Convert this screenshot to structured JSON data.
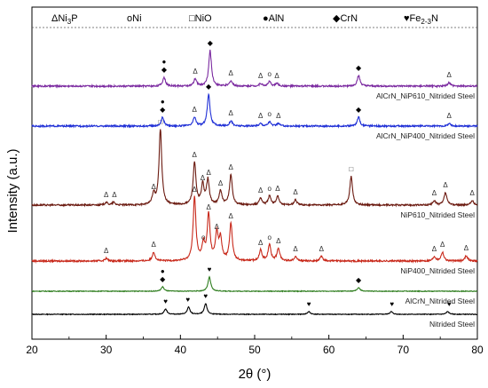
{
  "chart_data": {
    "type": "line",
    "title": "",
    "xlabel": "2θ (°)",
    "ylabel": "Intensity (a.u.)",
    "xlim": [
      20,
      80
    ],
    "xticks": [
      20,
      30,
      40,
      50,
      60,
      70,
      80
    ],
    "yticks": [],
    "grid": false,
    "legend_placement": "top",
    "legend": [
      {
        "symbol": "Δ",
        "label": "Ni3P"
      },
      {
        "symbol": "o",
        "label": "Ni"
      },
      {
        "symbol": "□",
        "label": "NiO"
      },
      {
        "symbol": "●",
        "label": "AlN"
      },
      {
        "symbol": "◆",
        "label": "CrN"
      },
      {
        "symbol": "♥",
        "label": "Fe2-3N"
      }
    ],
    "series": [
      {
        "name": "Nitrided Steel",
        "color": "#000000",
        "baseline": 0,
        "peaks": [
          [
            38.0,
            6
          ],
          [
            41.1,
            8
          ],
          [
            43.4,
            12
          ],
          [
            57.3,
            3
          ],
          [
            68.4,
            3
          ],
          [
            76.0,
            3
          ]
        ],
        "markers": [
          {
            "x": 38.0,
            "symbol": "♥"
          },
          {
            "x": 41.0,
            "symbol": "♥"
          },
          {
            "x": 43.4,
            "symbol": "♥"
          },
          {
            "x": 57.3,
            "symbol": "♥"
          },
          {
            "x": 68.5,
            "symbol": "♥"
          },
          {
            "x": 76.2,
            "symbol": "♥"
          }
        ]
      },
      {
        "name": "AlCrN_Nitrided Steel",
        "color": "#2e7d1e",
        "baseline": 26,
        "peaks": [
          [
            37.6,
            5
          ],
          [
            43.9,
            16
          ],
          [
            64.0,
            4
          ]
        ],
        "markers": [
          {
            "x": 37.6,
            "symbol": "◆"
          },
          {
            "x": 37.6,
            "symbol": "●"
          },
          {
            "x": 43.9,
            "symbol": "♥"
          },
          {
            "x": 64.0,
            "symbol": "◆"
          }
        ]
      },
      {
        "name": "NiP400_Nitrided Steel",
        "color": "#c8281a",
        "baseline": 60,
        "peaks": [
          [
            30.0,
            3
          ],
          [
            36.4,
            10
          ],
          [
            41.9,
            72
          ],
          [
            43.1,
            18
          ],
          [
            43.8,
            52
          ],
          [
            44.9,
            30
          ],
          [
            45.4,
            24
          ],
          [
            46.8,
            42
          ],
          [
            50.8,
            12
          ],
          [
            52.0,
            18
          ],
          [
            53.2,
            14
          ],
          [
            55.5,
            5
          ],
          [
            59.0,
            5
          ],
          [
            74.2,
            5
          ],
          [
            75.3,
            10
          ],
          [
            78.5,
            6
          ]
        ],
        "markers": [
          {
            "x": 30.0,
            "symbol": "Δ"
          },
          {
            "x": 36.4,
            "symbol": "Δ"
          },
          {
            "x": 41.9,
            "symbol": "Δ"
          },
          {
            "x": 43.1,
            "symbol": "o"
          },
          {
            "x": 43.8,
            "symbol": "Δ"
          },
          {
            "x": 44.9,
            "symbol": "Δ"
          },
          {
            "x": 46.8,
            "symbol": "Δ"
          },
          {
            "x": 50.8,
            "symbol": "Δ"
          },
          {
            "x": 52.0,
            "symbol": "o"
          },
          {
            "x": 53.2,
            "symbol": "Δ"
          },
          {
            "x": 55.5,
            "symbol": "Δ"
          },
          {
            "x": 59.0,
            "symbol": "Δ"
          },
          {
            "x": 74.2,
            "symbol": "Δ"
          },
          {
            "x": 75.3,
            "symbol": "Δ"
          },
          {
            "x": 78.5,
            "symbol": "Δ"
          }
        ]
      },
      {
        "name": "NiP610_Nitrided Steel",
        "color": "#6b1a10",
        "baseline": 123,
        "peaks": [
          [
            30.0,
            3
          ],
          [
            31.0,
            3
          ],
          [
            36.4,
            12
          ],
          [
            37.3,
            85
          ],
          [
            41.9,
            48
          ],
          [
            43.0,
            22
          ],
          [
            43.7,
            28
          ],
          [
            45.4,
            16
          ],
          [
            46.8,
            34
          ],
          [
            50.8,
            8
          ],
          [
            52.0,
            10
          ],
          [
            53.1,
            10
          ],
          [
            55.5,
            6
          ],
          [
            63.0,
            32
          ],
          [
            74.2,
            5
          ],
          [
            75.7,
            14
          ],
          [
            79.3,
            5
          ]
        ],
        "markers": [
          {
            "x": 30.0,
            "symbol": "Δ"
          },
          {
            "x": 31.1,
            "symbol": "Δ"
          },
          {
            "x": 36.4,
            "symbol": "Δ"
          },
          {
            "x": 37.3,
            "symbol": "□"
          },
          {
            "x": 41.9,
            "symbol": "Δ"
          },
          {
            "x": 43.0,
            "symbol": "Δ"
          },
          {
            "x": 43.8,
            "symbol": "Δ"
          },
          {
            "x": 45.4,
            "symbol": "Δ"
          },
          {
            "x": 46.8,
            "symbol": "Δ"
          },
          {
            "x": 50.8,
            "symbol": "Δ"
          },
          {
            "x": 52.0,
            "symbol": "o"
          },
          {
            "x": 53.1,
            "symbol": "Δ"
          },
          {
            "x": 55.5,
            "symbol": "Δ"
          },
          {
            "x": 63.0,
            "symbol": "□"
          },
          {
            "x": 74.2,
            "symbol": "Δ"
          },
          {
            "x": 75.7,
            "symbol": "Δ"
          },
          {
            "x": 79.3,
            "symbol": "Δ"
          }
        ]
      },
      {
        "name": "AlCrN_NiP400_Nitrided Steel",
        "color": "#1f2fd6",
        "baseline": 212,
        "peaks": [
          [
            37.6,
            10
          ],
          [
            41.9,
            10
          ],
          [
            43.8,
            36
          ],
          [
            46.8,
            6
          ],
          [
            50.8,
            3
          ],
          [
            52.0,
            5
          ],
          [
            53.2,
            3
          ],
          [
            64.0,
            10
          ],
          [
            76.2,
            3
          ]
        ],
        "markers": [
          {
            "x": 37.6,
            "symbol": "◆"
          },
          {
            "x": 37.6,
            "symbol": "●"
          },
          {
            "x": 41.9,
            "symbol": "Δ"
          },
          {
            "x": 43.8,
            "symbol": "◆"
          },
          {
            "x": 46.8,
            "symbol": "Δ"
          },
          {
            "x": 50.8,
            "symbol": "Δ"
          },
          {
            "x": 52.0,
            "symbol": "o"
          },
          {
            "x": 53.2,
            "symbol": "Δ"
          },
          {
            "x": 64.0,
            "symbol": "◆"
          },
          {
            "x": 76.2,
            "symbol": "Δ"
          }
        ]
      },
      {
        "name": "AlCrN_NiP610_Nitrided Steel",
        "color": "#7b2aa0",
        "baseline": 257,
        "peaks": [
          [
            37.8,
            10
          ],
          [
            42.0,
            8
          ],
          [
            44.0,
            40
          ],
          [
            46.8,
            6
          ],
          [
            50.8,
            3
          ],
          [
            52.0,
            5
          ],
          [
            53.0,
            3
          ],
          [
            64.0,
            12
          ],
          [
            76.2,
            4
          ]
        ],
        "markers": [
          {
            "x": 37.8,
            "symbol": "◆"
          },
          {
            "x": 37.8,
            "symbol": "●"
          },
          {
            "x": 42.0,
            "symbol": "Δ"
          },
          {
            "x": 44.0,
            "symbol": "◆"
          },
          {
            "x": 46.8,
            "symbol": "Δ"
          },
          {
            "x": 50.8,
            "symbol": "Δ"
          },
          {
            "x": 52.0,
            "symbol": "o"
          },
          {
            "x": 53.0,
            "symbol": "Δ"
          },
          {
            "x": 64.0,
            "symbol": "◆"
          },
          {
            "x": 76.2,
            "symbol": "Δ"
          }
        ]
      }
    ]
  }
}
